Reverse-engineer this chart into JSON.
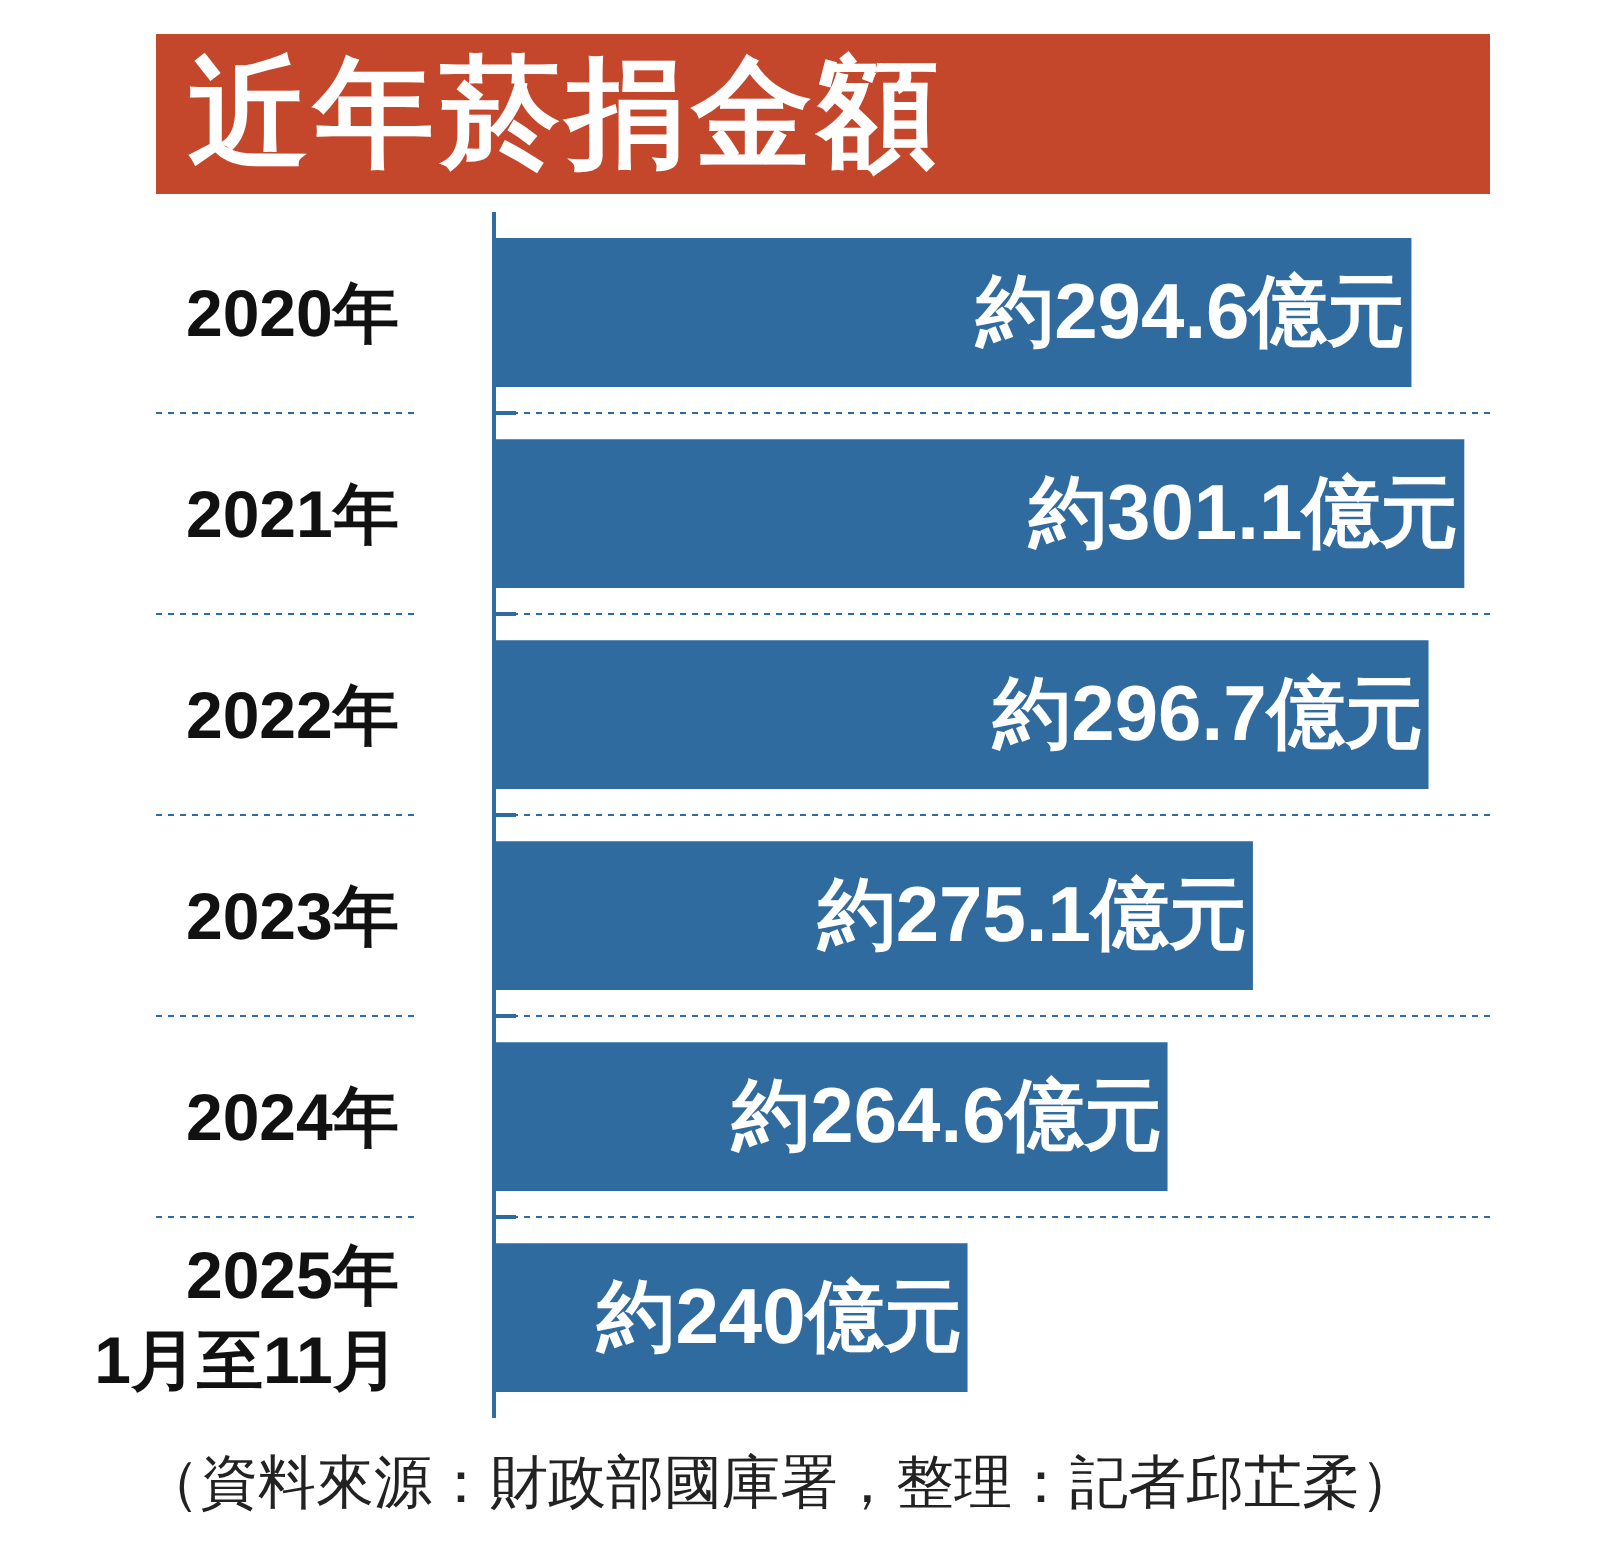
{
  "chart_data": {
    "type": "bar",
    "orientation": "horizontal",
    "title": "近年菸捐金額",
    "categories": [
      "2020年",
      "2021年",
      "2022年",
      "2023年",
      "2024年",
      "2025年\n1月至11月"
    ],
    "values": [
      294.6,
      301.1,
      296.7,
      275.1,
      264.6,
      240
    ],
    "value_labels": [
      "約294.6億元",
      "約301.1億元",
      "約296.7億元",
      "約275.1億元",
      "約264.6億元",
      "約240億元"
    ],
    "color": "#2f6b9f",
    "xlim": [
      182,
      305
    ],
    "grid": "y",
    "tick_labels": "y",
    "annotations": [
      "（資料來源：財政部國庫署，整理：記者邱芷柔）"
    ]
  }
}
